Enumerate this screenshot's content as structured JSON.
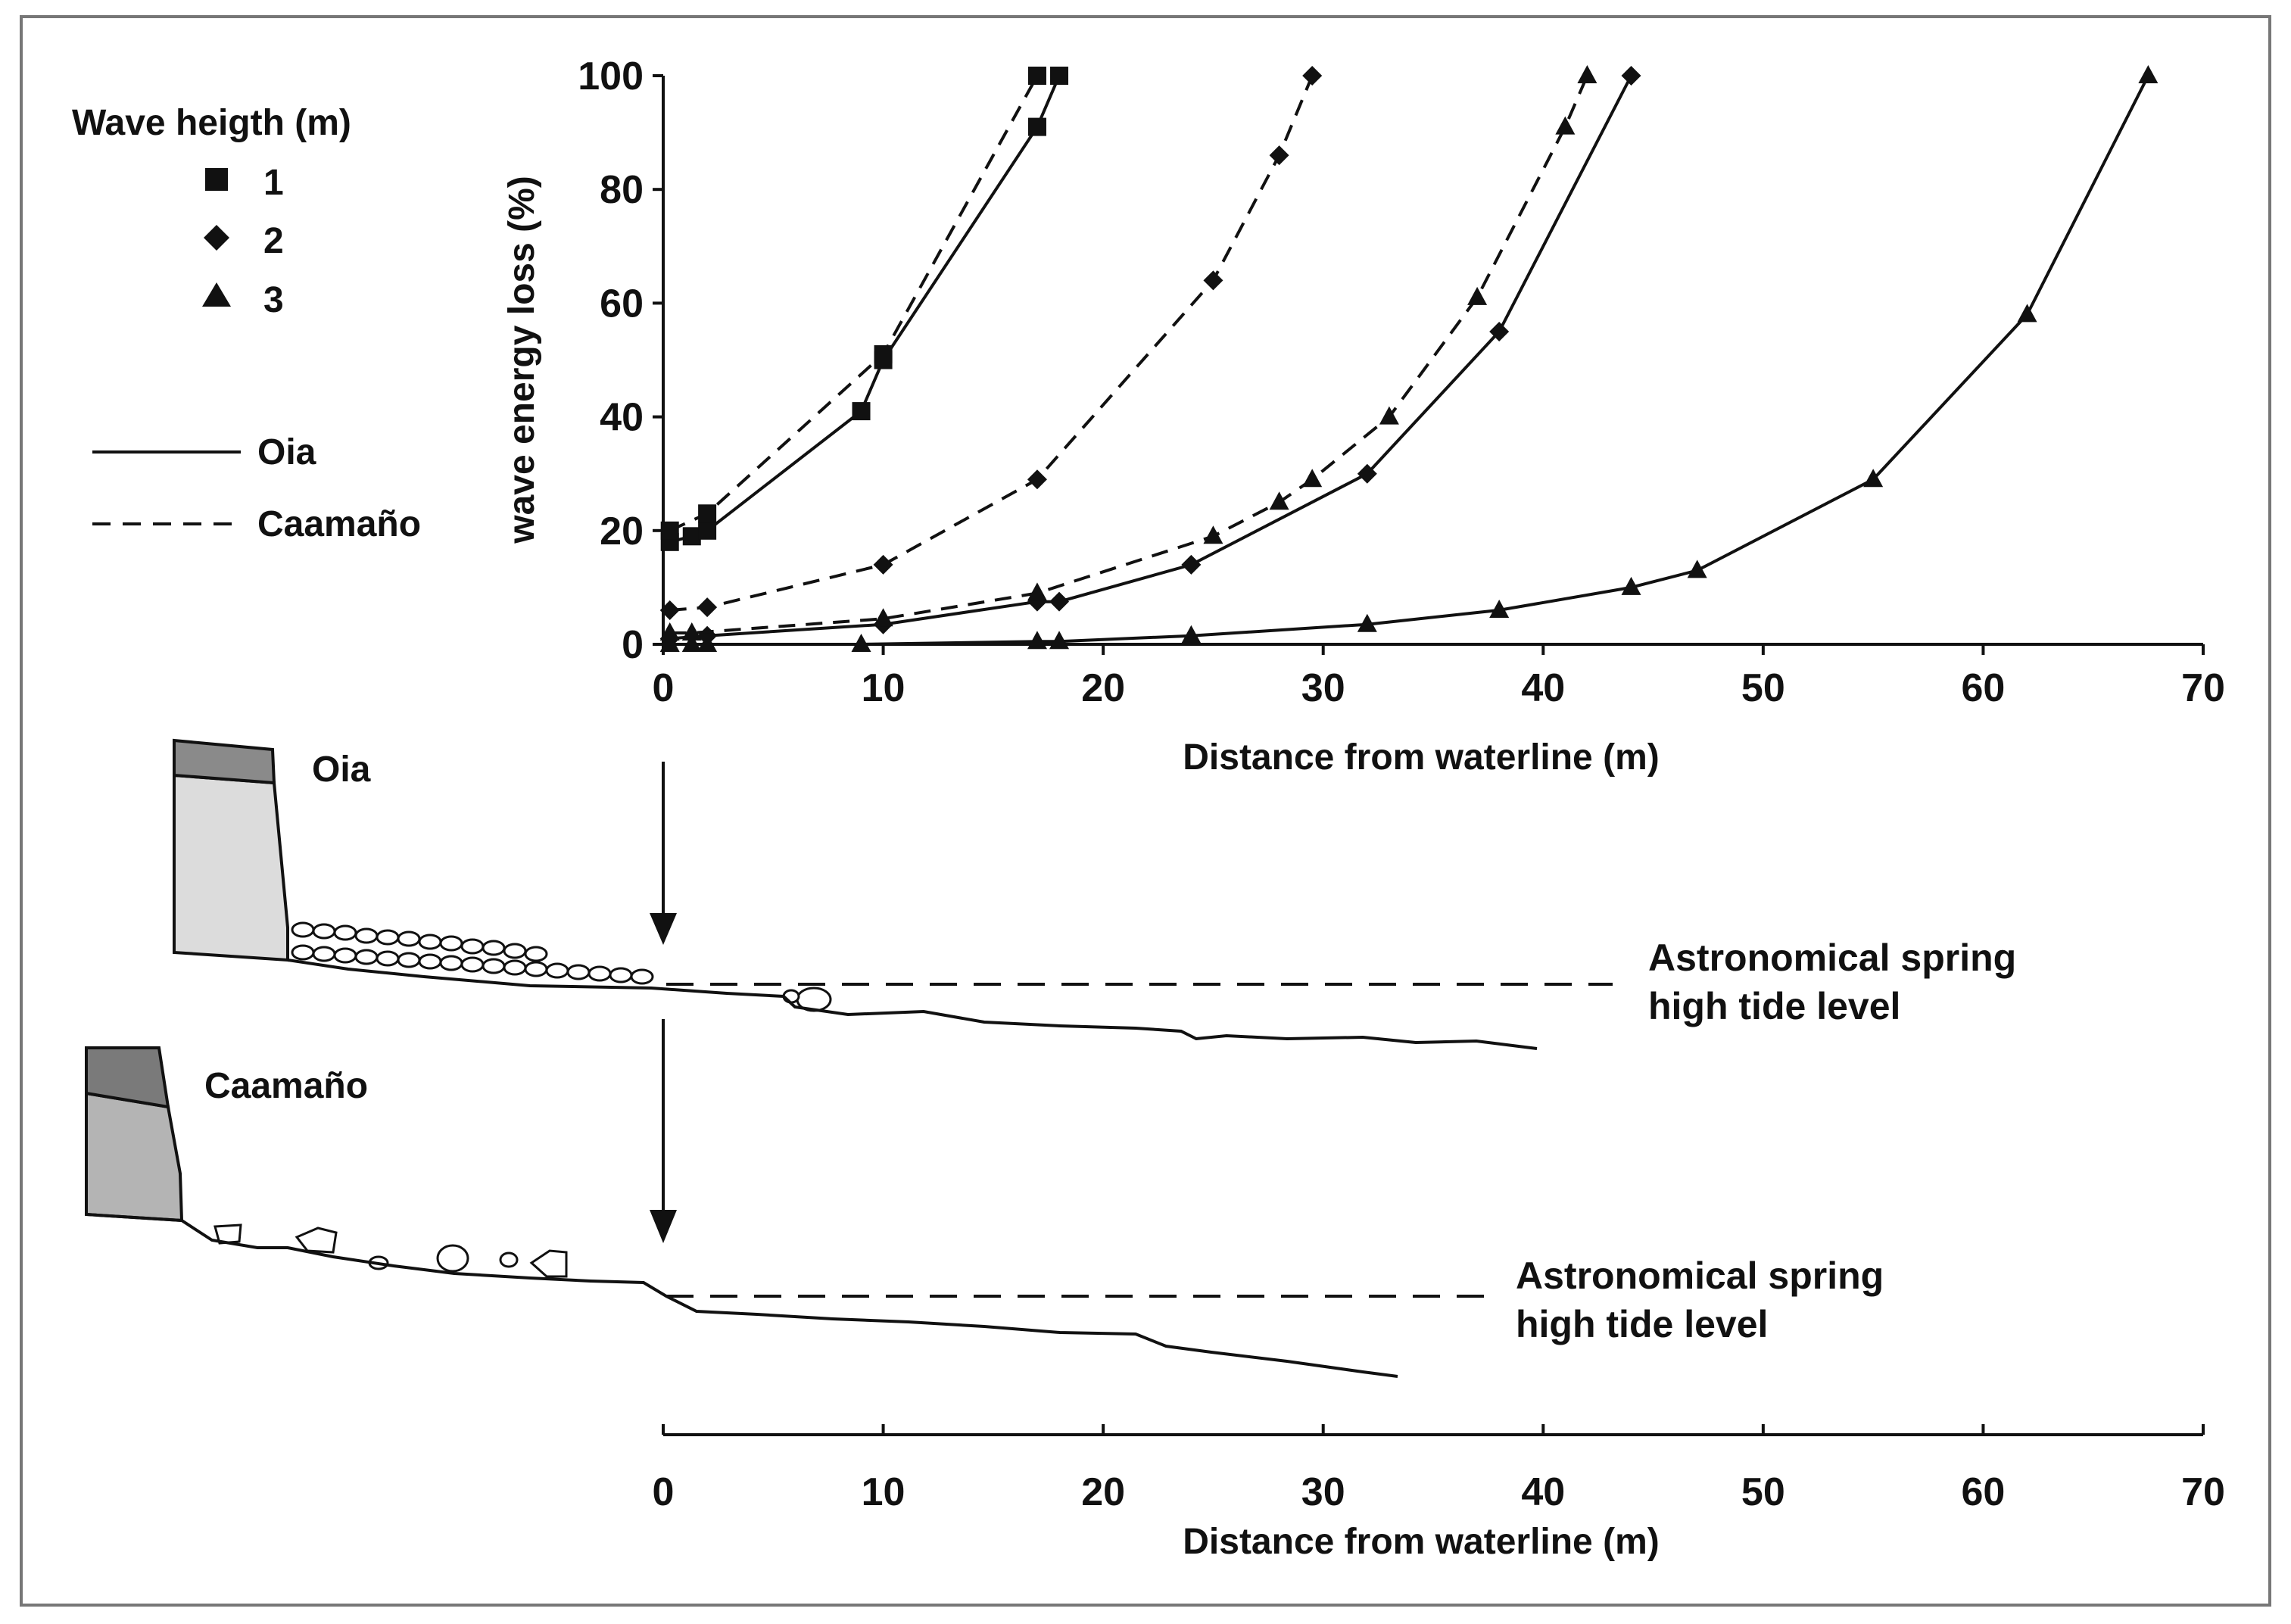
{
  "chart_data": {
    "type": "line",
    "title": "",
    "xlabel": "Distance from waterline (m)",
    "ylabel": "wave energy loss (%)",
    "xlim": [
      0,
      70
    ],
    "ylim": [
      0,
      100
    ],
    "xticks": [
      0,
      10,
      20,
      30,
      40,
      50,
      60,
      70
    ],
    "yticks": [
      0,
      20,
      40,
      60,
      80,
      100
    ],
    "legend": {
      "title": "Wave heigth (m)",
      "markers": [
        {
          "label": "1",
          "marker": "square"
        },
        {
          "label": "2",
          "marker": "diamond"
        },
        {
          "label": "3",
          "marker": "triangle"
        }
      ],
      "lines": [
        {
          "label": "Oia",
          "style": "solid"
        },
        {
          "label": "Caamaño",
          "style": "dashed"
        }
      ]
    },
    "series": [
      {
        "name": "Oia 1 m",
        "site": "Oia",
        "marker": "square",
        "style": "solid",
        "x": [
          0.3,
          1.3,
          2.0,
          9.0,
          10.0,
          17.0,
          18.0
        ],
        "y": [
          18,
          19,
          20,
          41,
          50,
          91,
          100
        ]
      },
      {
        "name": "Caamaño 1 m",
        "site": "Caamaño",
        "marker": "square",
        "style": "dashed",
        "x": [
          0.3,
          2.0,
          10.0,
          17.0
        ],
        "y": [
          20,
          23,
          51,
          100
        ]
      },
      {
        "name": "Oia 2 m",
        "site": "Oia",
        "marker": "diamond",
        "style": "solid",
        "x": [
          0.3,
          2.0,
          10.0,
          17.0,
          18.0,
          24.0,
          32.0,
          38.0,
          44.0
        ],
        "y": [
          1,
          1.5,
          3.5,
          7.5,
          7.5,
          14,
          30,
          55,
          100
        ]
      },
      {
        "name": "Caamaño 2 m",
        "site": "Caamaño",
        "marker": "diamond",
        "style": "dashed",
        "x": [
          0.3,
          2.0,
          10.0,
          17.0,
          25.0,
          28.0,
          29.5
        ],
        "y": [
          6,
          6.5,
          14,
          29,
          64,
          86,
          100
        ]
      },
      {
        "name": "Oia 3 m",
        "site": "Oia",
        "marker": "triangle",
        "style": "solid",
        "x": [
          0.3,
          1.3,
          2.0,
          9.0,
          17.0,
          18.0,
          24.0,
          32.0,
          38.0,
          44.0,
          47.0,
          55.0,
          62.0,
          67.5
        ],
        "y": [
          0,
          0,
          0,
          0,
          0.5,
          0.5,
          1.5,
          3.5,
          6,
          10,
          13,
          29,
          58,
          100
        ]
      },
      {
        "name": "Caamaño 3 m",
        "site": "Caamaño",
        "marker": "triangle",
        "style": "dashed",
        "x": [
          0.3,
          1.3,
          10.0,
          17.0,
          25.0,
          28.0,
          29.5,
          33.0,
          37.0,
          41.0,
          42.0
        ],
        "y": [
          2,
          2,
          4.5,
          9,
          19,
          25,
          29,
          40,
          61,
          91,
          100
        ]
      }
    ]
  },
  "profiles": {
    "oia": {
      "label": "Oia",
      "tide_line1": "Astronomical spring",
      "tide_line2": "high tide level"
    },
    "caamano": {
      "label": "Caamaño",
      "tide_line1": "Astronomical spring",
      "tide_line2": "high tide level"
    },
    "xlabel": "Distance from waterline (m)",
    "xticks": [
      0,
      10,
      20,
      30,
      40,
      50,
      60,
      70
    ]
  }
}
